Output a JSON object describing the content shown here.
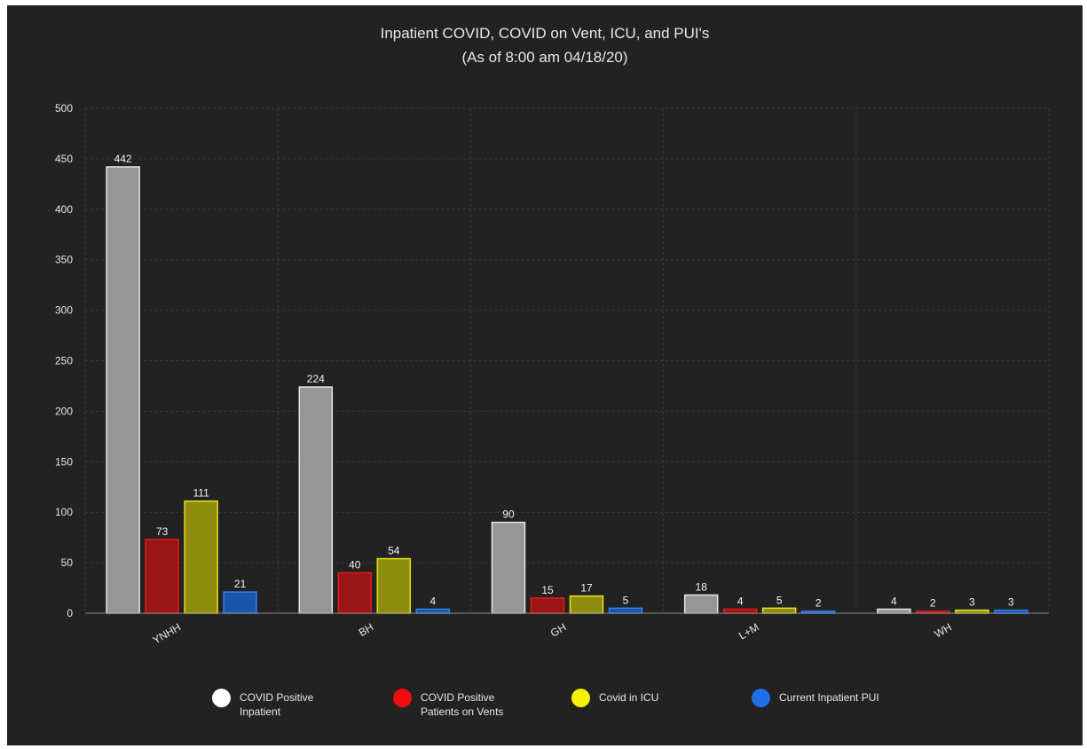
{
  "chart_data": {
    "type": "bar",
    "title": "Inpatient COVID, COVID on Vent, ICU, and PUI's",
    "subtitle": "(As of 8:00 am 04/18/20)",
    "xlabel": "",
    "ylabel": "",
    "categories": [
      "YNHH",
      "BH",
      "GH",
      "L+M",
      "WH"
    ],
    "ylim": [
      0,
      500
    ],
    "yticks": [
      0,
      50,
      100,
      150,
      200,
      250,
      300,
      350,
      400,
      450,
      500
    ],
    "grid": true,
    "legend_position": "bottom",
    "series": [
      {
        "name": "COVID Positive Inpatient",
        "name_lines": [
          "COVID Positive",
          "Inpatient"
        ],
        "values": [
          442,
          224,
          90,
          18,
          4
        ],
        "fill": "#969696",
        "stroke": "#e6e6e6",
        "swatch": "#ffffff"
      },
      {
        "name": "COVID Positive Patients on Vents",
        "name_lines": [
          "COVID Positive",
          "Patients on Vents"
        ],
        "values": [
          73,
          40,
          15,
          4,
          2
        ],
        "fill": "#9a1515",
        "stroke": "#e21b1b",
        "swatch": "#f20d0d"
      },
      {
        "name": "Covid in ICU",
        "name_lines": [
          "Covid in ICU"
        ],
        "values": [
          111,
          54,
          17,
          5,
          3
        ],
        "fill": "#8f8c10",
        "stroke": "#e6e21c",
        "swatch": "#f6f200"
      },
      {
        "name": "Current Inpatient PUI",
        "name_lines": [
          "Current Inpatient PUI"
        ],
        "values": [
          21,
          4,
          5,
          2,
          3
        ],
        "fill": "#1b55a8",
        "stroke": "#2f7ff0",
        "swatch": "#1f6fe6"
      }
    ]
  }
}
